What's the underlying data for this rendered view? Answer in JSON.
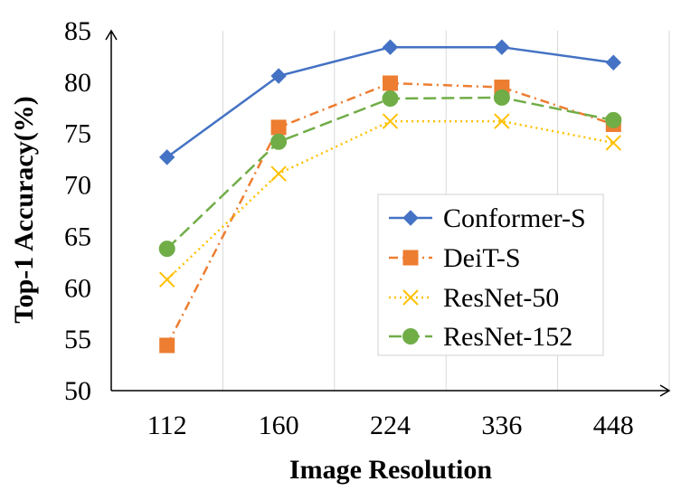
{
  "chart_data": {
    "type": "line",
    "title": "",
    "xlabel": "Image  Resolution",
    "ylabel": "Top-1  Accuracy(%)",
    "categories": [
      "112",
      "160",
      "224",
      "336",
      "448"
    ],
    "ylim": [
      50,
      85
    ],
    "yticks": [
      50,
      55,
      60,
      65,
      70,
      75,
      80,
      85
    ],
    "grid": "vertical",
    "legend_position": "center-right",
    "series": [
      {
        "name": "Conformer-S",
        "values": [
          72.7,
          80.6,
          83.4,
          83.4,
          81.9
        ],
        "color": "#4472C4",
        "marker": "diamond",
        "dash": "solid"
      },
      {
        "name": "DeiT-S",
        "values": [
          54.4,
          75.6,
          79.9,
          79.5,
          75.9
        ],
        "color": "#ED7D31",
        "marker": "square",
        "dash": "dashdot"
      },
      {
        "name": "ResNet-50",
        "values": [
          60.8,
          71.1,
          76.2,
          76.2,
          74.1
        ],
        "color": "#FFC000",
        "marker": "x",
        "dash": "dotted"
      },
      {
        "name": "ResNet-152",
        "values": [
          63.8,
          74.2,
          78.4,
          78.5,
          76.3
        ],
        "color": "#70AD47",
        "marker": "circle",
        "dash": "longdash"
      }
    ]
  }
}
